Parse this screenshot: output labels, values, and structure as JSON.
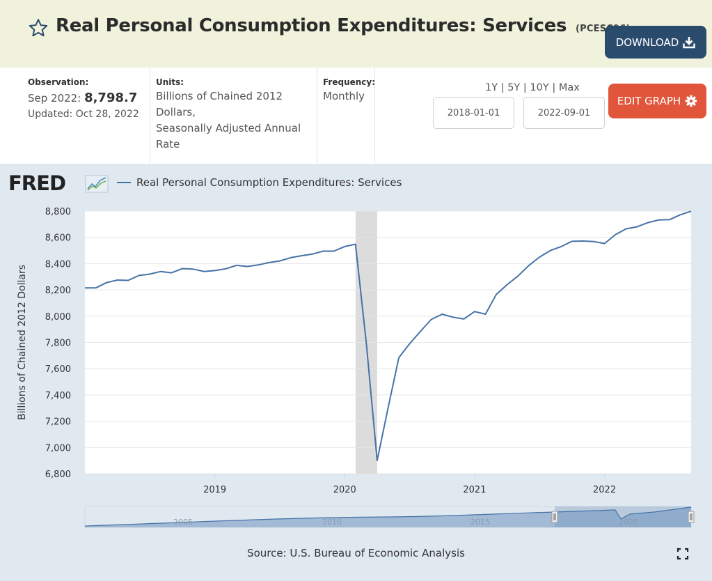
{
  "header": {
    "title": "Real Personal Consumption Expenditures: Services",
    "series_id": "(PCESC96)",
    "download_label": "DOWNLOAD",
    "star_icon": "star-outline-icon"
  },
  "meta": {
    "observation_label": "Observation:",
    "observation_date": "Sep 2022:",
    "observation_value": "8,798.7",
    "updated": "Updated: Oct 28, 2022",
    "units_label": "Units:",
    "units_line1": "Billions of Chained 2012",
    "units_line2": "Dollars,",
    "units_line3": "Seasonally Adjusted Annual",
    "units_line4": "Rate",
    "frequency_label": "Frequency:",
    "frequency_value": "Monthly",
    "range_links": [
      "1Y",
      "5Y",
      "10Y",
      "Max"
    ],
    "start_date": "2018-01-01",
    "end_date": "2022-09-01",
    "edit_graph_label": "EDIT GRAPH"
  },
  "colors": {
    "series": "#4572a7",
    "recession": "#dcdcdc",
    "download_bg": "#2b4b6d",
    "edit_bg": "#e1553a",
    "header_bg": "#f0f2dc",
    "chart_bg": "#e1e9f0"
  },
  "footer": {
    "source": "Source: U.S. Bureau of Economic Analysis"
  },
  "chart_data": {
    "type": "line",
    "title": "",
    "legend": "Real Personal Consumption Expenditures: Services",
    "xlabel": "",
    "ylabel": "Billions of Chained 2012 Dollars",
    "ylim": [
      6800,
      8800
    ],
    "y_ticks": [
      "6,800",
      "7,000",
      "7,200",
      "7,400",
      "7,600",
      "7,800",
      "8,000",
      "8,200",
      "8,400",
      "8,600",
      "8,800"
    ],
    "x_ticks": [
      "2019",
      "2020",
      "2021",
      "2022"
    ],
    "grid": true,
    "recession_shading": {
      "start": "2020-02",
      "end": "2020-04"
    },
    "series": [
      {
        "name": "Real Personal Consumption Expenditures: Services",
        "x": [
          "2018-01",
          "2018-02",
          "2018-03",
          "2018-04",
          "2018-05",
          "2018-06",
          "2018-07",
          "2018-08",
          "2018-09",
          "2018-10",
          "2018-11",
          "2018-12",
          "2019-01",
          "2019-02",
          "2019-03",
          "2019-04",
          "2019-05",
          "2019-06",
          "2019-07",
          "2019-08",
          "2019-09",
          "2019-10",
          "2019-11",
          "2019-12",
          "2020-01",
          "2020-02",
          "2020-03",
          "2020-04",
          "2020-05",
          "2020-06",
          "2020-07",
          "2020-08",
          "2020-09",
          "2020-10",
          "2020-11",
          "2020-12",
          "2021-01",
          "2021-02",
          "2021-03",
          "2021-04",
          "2021-05",
          "2021-06",
          "2021-07",
          "2021-08",
          "2021-09",
          "2021-10",
          "2021-11",
          "2021-12",
          "2022-01",
          "2022-02",
          "2022-03",
          "2022-04",
          "2022-05",
          "2022-06",
          "2022-07",
          "2022-08",
          "2022-09"
        ],
        "values": [
          8215,
          8215,
          8255,
          8275,
          8272,
          8310,
          8320,
          8340,
          8330,
          8362,
          8358,
          8340,
          8347,
          8360,
          8387,
          8378,
          8390,
          8408,
          8420,
          8445,
          8460,
          8472,
          8495,
          8495,
          8530,
          8548,
          7790,
          6900,
          7300,
          7685,
          7790,
          7885,
          7975,
          8015,
          7992,
          7978,
          8035,
          8015,
          8165,
          8240,
          8305,
          8385,
          8450,
          8500,
          8530,
          8570,
          8572,
          8568,
          8553,
          8620,
          8665,
          8680,
          8712,
          8732,
          8735,
          8772,
          8798.7
        ]
      }
    ],
    "navigator": {
      "tick_labels": [
        "2005",
        "2010",
        "2015",
        "2020"
      ]
    }
  },
  "fred_logo": "FRED"
}
